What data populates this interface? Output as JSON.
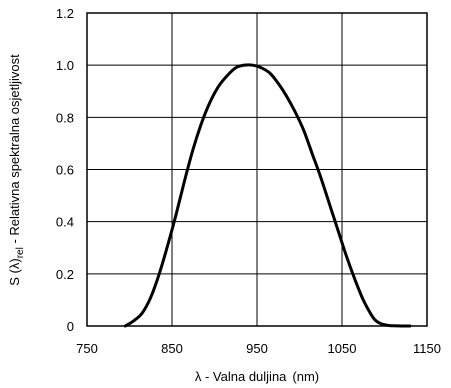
{
  "chart_data": {
    "type": "line",
    "xlabel_main": "λ - ",
    "xlabel_rest": "Valna duljina",
    "xlabel_unit": "(nm)",
    "ylabel_start": "S (λ)",
    "ylabel_sub": "rel",
    "ylabel_end": " - Relativna spektralna osjetljivost",
    "xlim": [
      750,
      1150
    ],
    "ylim": [
      0,
      1.2
    ],
    "xticks": [
      "750",
      "850",
      "950",
      "1050",
      "1150"
    ],
    "yticks": [
      "0",
      "0.2",
      "0.4",
      "0.6",
      "0.8",
      "1.0",
      "1.2"
    ],
    "grid": true,
    "series": [
      {
        "x": [
          795,
          805,
          815,
          825,
          835,
          845,
          855,
          865,
          875,
          885,
          895,
          905,
          915,
          925,
          935,
          945,
          955,
          965,
          975,
          985,
          995,
          1005,
          1015,
          1025,
          1035,
          1045,
          1055,
          1065,
          1075,
          1085,
          1090,
          1095,
          1100,
          1105,
          1110,
          1120,
          1130
        ],
        "y": [
          0.0,
          0.02,
          0.05,
          0.11,
          0.2,
          0.31,
          0.43,
          0.56,
          0.68,
          0.78,
          0.86,
          0.92,
          0.96,
          0.99,
          1.0,
          1.0,
          0.99,
          0.97,
          0.93,
          0.88,
          0.82,
          0.75,
          0.66,
          0.57,
          0.47,
          0.37,
          0.27,
          0.18,
          0.1,
          0.04,
          0.02,
          0.01,
          0.005,
          0.002,
          0.001,
          0.0,
          0.0
        ],
        "color": "#000000"
      }
    ]
  }
}
